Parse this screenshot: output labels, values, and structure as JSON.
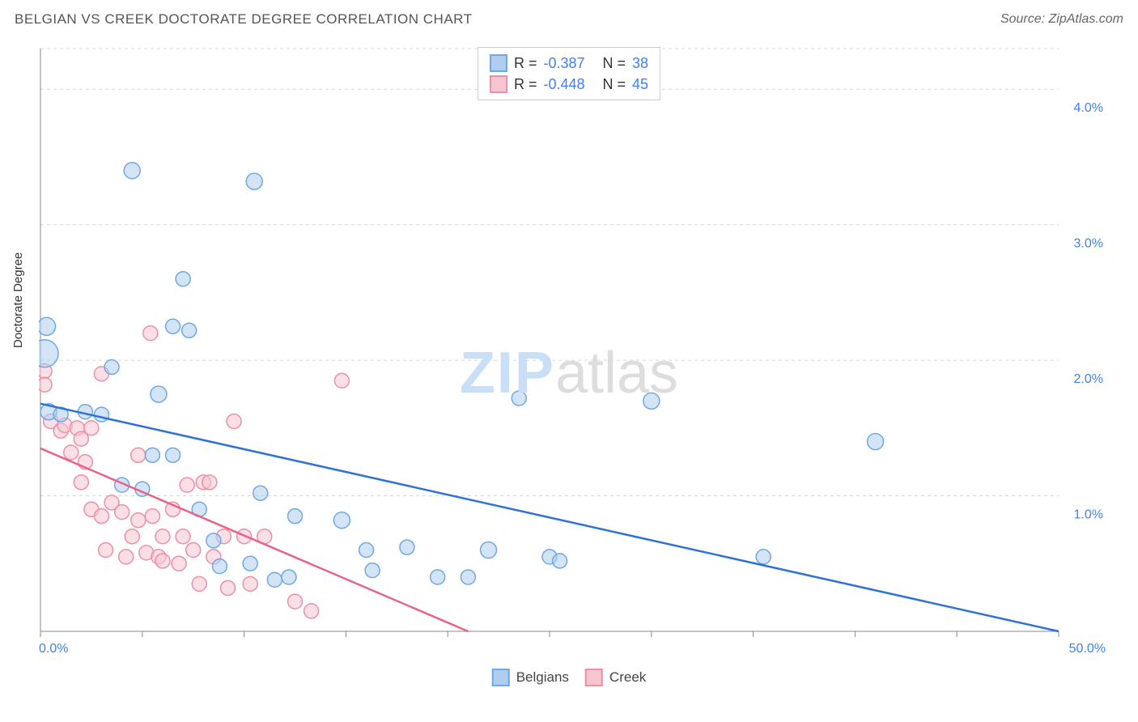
{
  "header": {
    "title": "BELGIAN VS CREEK DOCTORATE DEGREE CORRELATION CHART",
    "source": "Source: ZipAtlas.com"
  },
  "ylabel": "Doctorate Degree",
  "watermark": {
    "a": "ZIP",
    "b": "atlas"
  },
  "chart": {
    "type": "scatter",
    "xlim": [
      0,
      50
    ],
    "ylim": [
      0,
      4.3
    ],
    "x_ticks": [
      0,
      5,
      10,
      15,
      20,
      25,
      30,
      35,
      40,
      45,
      50
    ],
    "x_tick_labels_shown": {
      "0": "0.0%",
      "50": "50.0%"
    },
    "y_gridlines": [
      1.0,
      2.0,
      3.0,
      4.0
    ],
    "y_tick_labels": {
      "1.0": "1.0%",
      "2.0": "2.0%",
      "3.0": "3.0%",
      "4.0": "4.0%"
    },
    "background_color": "#ffffff",
    "grid_color": "#d7d7d7",
    "axis_color": "#888888",
    "marker_radius": 9,
    "marker_stroke_width": 1.5,
    "trend_line_width": 2.5,
    "series": {
      "belgians": {
        "label": "Belgians",
        "fill": "#aecdf0",
        "stroke": "#6fa8e2",
        "fill_opacity": 0.55,
        "trend_color": "#2f72d4",
        "trend": {
          "x1": 0,
          "y1": 1.68,
          "x2": 50,
          "y2": 0.0
        },
        "R": "-0.387",
        "N": "38",
        "points": [
          {
            "x": 0.3,
            "y": 2.25,
            "r": 11
          },
          {
            "x": 0.2,
            "y": 2.05,
            "r": 17
          },
          {
            "x": 0.4,
            "y": 1.62,
            "r": 10
          },
          {
            "x": 1.0,
            "y": 1.6,
            "r": 9
          },
          {
            "x": 2.2,
            "y": 1.62,
            "r": 9
          },
          {
            "x": 3.0,
            "y": 1.6,
            "r": 9
          },
          {
            "x": 3.5,
            "y": 1.95,
            "r": 9
          },
          {
            "x": 4.5,
            "y": 3.4,
            "r": 10
          },
          {
            "x": 5.8,
            "y": 1.75,
            "r": 10
          },
          {
            "x": 6.5,
            "y": 2.25,
            "r": 9
          },
          {
            "x": 6.5,
            "y": 1.3,
            "r": 9
          },
          {
            "x": 7.0,
            "y": 2.6,
            "r": 9
          },
          {
            "x": 7.3,
            "y": 2.22,
            "r": 9
          },
          {
            "x": 5.0,
            "y": 1.05,
            "r": 9
          },
          {
            "x": 4.0,
            "y": 1.08,
            "r": 9
          },
          {
            "x": 7.8,
            "y": 0.9,
            "r": 9
          },
          {
            "x": 8.5,
            "y": 0.67,
            "r": 9
          },
          {
            "x": 8.8,
            "y": 0.48,
            "r": 9
          },
          {
            "x": 10.3,
            "y": 0.5,
            "r": 9
          },
          {
            "x": 10.5,
            "y": 3.32,
            "r": 10
          },
          {
            "x": 10.8,
            "y": 1.02,
            "r": 9
          },
          {
            "x": 11.5,
            "y": 0.38,
            "r": 9
          },
          {
            "x": 12.2,
            "y": 0.4,
            "r": 9
          },
          {
            "x": 12.5,
            "y": 0.85,
            "r": 9
          },
          {
            "x": 14.8,
            "y": 0.82,
            "r": 10
          },
          {
            "x": 16.0,
            "y": 0.6,
            "r": 9
          },
          {
            "x": 16.3,
            "y": 0.45,
            "r": 9
          },
          {
            "x": 18.0,
            "y": 0.62,
            "r": 9
          },
          {
            "x": 19.5,
            "y": 0.4,
            "r": 9
          },
          {
            "x": 21.0,
            "y": 0.4,
            "r": 9
          },
          {
            "x": 22.0,
            "y": 0.6,
            "r": 10
          },
          {
            "x": 23.5,
            "y": 1.72,
            "r": 9
          },
          {
            "x": 25.0,
            "y": 0.55,
            "r": 9
          },
          {
            "x": 25.5,
            "y": 0.52,
            "r": 9
          },
          {
            "x": 30.0,
            "y": 1.7,
            "r": 10
          },
          {
            "x": 35.5,
            "y": 0.55,
            "r": 9
          },
          {
            "x": 41.0,
            "y": 1.4,
            "r": 10
          },
          {
            "x": 5.5,
            "y": 1.3,
            "r": 9
          }
        ]
      },
      "creek": {
        "label": "Creek",
        "fill": "#f5c6d2",
        "stroke": "#ec8fa7",
        "fill_opacity": 0.55,
        "trend_color": "#e86289",
        "trend": {
          "x1": 0,
          "y1": 1.35,
          "x2": 21,
          "y2": 0.0
        },
        "R": "-0.448",
        "N": "45",
        "points": [
          {
            "x": 0.2,
            "y": 1.92,
            "r": 9
          },
          {
            "x": 0.2,
            "y": 1.82,
            "r": 9
          },
          {
            "x": 0.5,
            "y": 1.55,
            "r": 9
          },
          {
            "x": 1.0,
            "y": 1.48,
            "r": 9
          },
          {
            "x": 1.2,
            "y": 1.52,
            "r": 9
          },
          {
            "x": 1.5,
            "y": 1.32,
            "r": 9
          },
          {
            "x": 1.8,
            "y": 1.5,
            "r": 9
          },
          {
            "x": 2.0,
            "y": 1.42,
            "r": 9
          },
          {
            "x": 2.2,
            "y": 1.25,
            "r": 9
          },
          {
            "x": 2.5,
            "y": 1.5,
            "r": 9
          },
          {
            "x": 2.5,
            "y": 0.9,
            "r": 9
          },
          {
            "x": 3.0,
            "y": 1.9,
            "r": 9
          },
          {
            "x": 3.0,
            "y": 0.85,
            "r": 9
          },
          {
            "x": 3.2,
            "y": 0.6,
            "r": 9
          },
          {
            "x": 3.5,
            "y": 0.95,
            "r": 9
          },
          {
            "x": 4.0,
            "y": 0.88,
            "r": 9
          },
          {
            "x": 4.2,
            "y": 0.55,
            "r": 9
          },
          {
            "x": 4.5,
            "y": 0.7,
            "r": 9
          },
          {
            "x": 4.8,
            "y": 0.82,
            "r": 9
          },
          {
            "x": 5.2,
            "y": 0.58,
            "r": 9
          },
          {
            "x": 5.4,
            "y": 2.2,
            "r": 9
          },
          {
            "x": 5.5,
            "y": 0.85,
            "r": 9
          },
          {
            "x": 5.8,
            "y": 0.55,
            "r": 9
          },
          {
            "x": 6.0,
            "y": 0.7,
            "r": 9
          },
          {
            "x": 6.0,
            "y": 0.52,
            "r": 9
          },
          {
            "x": 6.5,
            "y": 0.9,
            "r": 9
          },
          {
            "x": 7.0,
            "y": 0.7,
            "r": 9
          },
          {
            "x": 7.2,
            "y": 1.08,
            "r": 9
          },
          {
            "x": 7.5,
            "y": 0.6,
            "r": 9
          },
          {
            "x": 7.8,
            "y": 0.35,
            "r": 9
          },
          {
            "x": 8.0,
            "y": 1.1,
            "r": 9
          },
          {
            "x": 8.3,
            "y": 1.1,
            "r": 9
          },
          {
            "x": 8.5,
            "y": 0.55,
            "r": 9
          },
          {
            "x": 9.0,
            "y": 0.7,
            "r": 9
          },
          {
            "x": 9.2,
            "y": 0.32,
            "r": 9
          },
          {
            "x": 9.5,
            "y": 1.55,
            "r": 9
          },
          {
            "x": 10.0,
            "y": 0.7,
            "r": 9
          },
          {
            "x": 10.3,
            "y": 0.35,
            "r": 9
          },
          {
            "x": 11.0,
            "y": 0.7,
            "r": 9
          },
          {
            "x": 12.5,
            "y": 0.22,
            "r": 9
          },
          {
            "x": 13.3,
            "y": 0.15,
            "r": 9
          },
          {
            "x": 14.8,
            "y": 1.85,
            "r": 9
          },
          {
            "x": 4.8,
            "y": 1.3,
            "r": 9
          },
          {
            "x": 6.8,
            "y": 0.5,
            "r": 9
          },
          {
            "x": 2.0,
            "y": 1.1,
            "r": 9
          }
        ]
      }
    }
  },
  "legend_top_labels": {
    "R": "R =",
    "N": "N ="
  },
  "legend_bottom": [
    {
      "key": "belgians"
    },
    {
      "key": "creek"
    }
  ]
}
